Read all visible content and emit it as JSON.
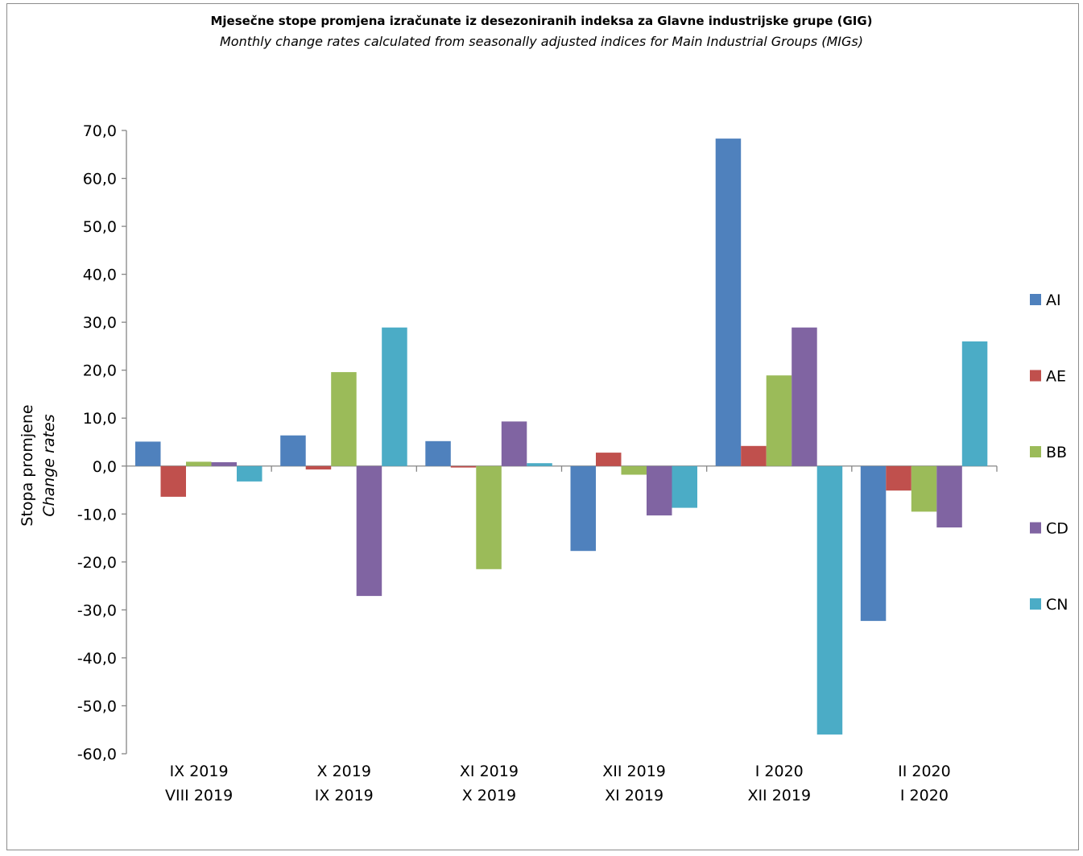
{
  "title": "Mjesečne stope promjena izračunate iz desezoniranih indeksa za Glavne industrijske grupe (GIG)",
  "subtitle": "Monthly change rates calculated from seasonally adjusted indices for Main Industrial Groups (MIGs)",
  "ylabel": "Stopa promjene",
  "ylabel_en": "Change rates",
  "chart_data": {
    "type": "bar",
    "title": "Mjesečne stope promjena izračunate iz desezoniranih indeksa za Glavne industrijske grupe (GIG)",
    "subtitle": "Monthly change rates calculated from seasonally adjusted indices for Main Industrial Groups (MIGs)",
    "ylabel": "Stopa promjene / Change rates",
    "xlabel": "",
    "ylim": [
      -60,
      70
    ],
    "ytick_step": 10,
    "yticks": [
      "70,0",
      "60,0",
      "50,0",
      "40,0",
      "30,0",
      "20,0",
      "10,0",
      "0,0",
      "-10,0",
      "-20,0",
      "-30,0",
      "-40,0",
      "-50,0",
      "-60,0"
    ],
    "grid": false,
    "legend_position": "right",
    "categories": [
      [
        "IX 2019",
        "VIII 2019"
      ],
      [
        "X 2019",
        "IX 2019"
      ],
      [
        "XI 2019",
        "X 2019"
      ],
      [
        "XII 2019",
        "XI 2019"
      ],
      [
        "I 2020",
        "XII 2019"
      ],
      [
        "II 2020",
        "I 2020"
      ]
    ],
    "series": [
      {
        "name": "AI",
        "color": "#4f81bd",
        "values": [
          5.1,
          6.4,
          5.2,
          -17.7,
          68.3,
          -32.3
        ]
      },
      {
        "name": "AE",
        "color": "#c0504d",
        "values": [
          -6.4,
          -0.7,
          -0.3,
          2.8,
          4.2,
          -5.1
        ]
      },
      {
        "name": "BB",
        "color": "#9bbb59",
        "values": [
          0.9,
          19.6,
          -21.5,
          -1.8,
          18.9,
          -9.5
        ]
      },
      {
        "name": "CD",
        "color": "#8064a2",
        "values": [
          0.8,
          -27.1,
          9.3,
          -10.3,
          28.9,
          -12.8
        ]
      },
      {
        "name": "CN",
        "color": "#4bacc6",
        "values": [
          -3.2,
          28.9,
          0.6,
          -8.7,
          -56.0,
          26.0
        ]
      }
    ]
  }
}
